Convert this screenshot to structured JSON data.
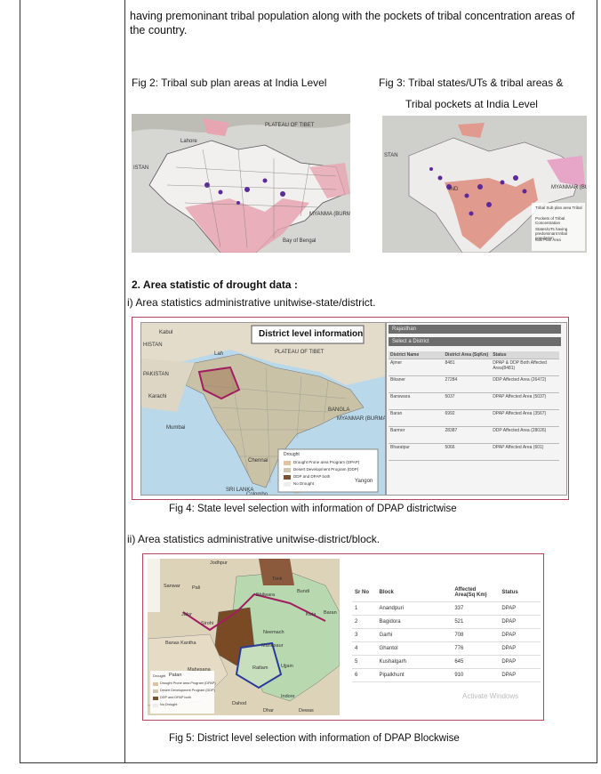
{
  "intro_text": "having premoninant tribal population along with the pockets of tribal concentration areas of the country.",
  "fig2": {
    "caption": "Fig 2:  Tribal sub plan areas at India Level",
    "map_labels": [
      "PLATEAU OF TIBET",
      "ISTAN",
      "Lahore",
      "MYANMA (BURMA)",
      "Bay of Bengal"
    ]
  },
  "fig3": {
    "caption_lines": [
      "Fig 3:  Tribal states/UTs & tribal areas &",
      "Tribal pockets at India Level"
    ],
    "map_labels": [
      "STAN",
      "IND",
      "MYANMAR (BURMA)"
    ],
    "legend": [
      "Tribal Sub plan area Tribal",
      "Pockets of Tribal Concentration",
      "States/UTs having predominant tribal population",
      "Sub Plan Area"
    ]
  },
  "section": {
    "heading": "2.   Area statistic of drought data :",
    "sub_i": "i) Area statistics administrative unitwise-state/district.",
    "sub_ii": "ii) Area statistics administrative unitwise-district/block."
  },
  "fig4": {
    "panel_title": "District level information",
    "state_select": "Rajasthan",
    "district_select": "Select a District",
    "map_labels": [
      "Kabul",
      "HISTAN",
      "Lah",
      "PAKISTAN",
      "Karachi",
      "PLATEAU OF TIBET",
      "Mumbai",
      "BANGLA",
      "MYANMAR (BURMA)",
      "Yangon",
      "Chennai",
      "SRI LANKA",
      "Colombo"
    ],
    "legend": {
      "title": "Drought",
      "items": [
        "Drought Prone area Program (DPAP)",
        "Desert Development Program (DDP)",
        "DDP and DPAP both",
        "No Drought"
      ]
    },
    "table": {
      "headers": [
        "District Name",
        "District Area (SqKm)",
        "Status"
      ],
      "rows": [
        [
          "Ajmer",
          "8481",
          "DPAP & DDP Both Affected Area(8481)"
        ],
        [
          "Bikaner",
          "27284",
          "DDP Affected Area (26472)"
        ],
        [
          "Banswara",
          "5037",
          "DPAP Affected Area (5037)"
        ],
        [
          "Baran",
          "6992",
          "DPAP Affected Area (3567)"
        ],
        [
          "Barmer",
          "28387",
          "DDP Affected Area (28026)"
        ],
        [
          "Bharatpur",
          "5066",
          "DPAP Affected Area (601)"
        ]
      ]
    },
    "caption": "Fig 4: State level selection with information of DPAP districtwise"
  },
  "fig5": {
    "map_labels": [
      "Jodhpur",
      "Tonk",
      "Sanwar",
      "Pali",
      "Bhilwara",
      "Bundi",
      "Kota",
      "Baran",
      "Jalor",
      "Sirohi",
      "Banas Kantha",
      "Neemach",
      "Mandsaur",
      "Patan",
      "Mahesana",
      "Ratlam",
      "Ujjain",
      "Dahod",
      "Indore",
      "Dhar",
      "Dewas"
    ],
    "legend": {
      "title": "Drought",
      "items": [
        "Drought Prone area Program (DPAP)",
        "Desert Development Program (DDP)",
        "DDP and DPAP both",
        "No Drought"
      ]
    },
    "table": {
      "headers": [
        "Sr No",
        "Block",
        "Affected Area(Sq Km)",
        "Status"
      ],
      "rows": [
        [
          "1",
          "Anandpuri",
          "337",
          "DPAP"
        ],
        [
          "2",
          "Bagidora",
          "521",
          "DPAP"
        ],
        [
          "3",
          "Garhi",
          "708",
          "DPAP"
        ],
        [
          "4",
          "Ghantol",
          "776",
          "DPAP"
        ],
        [
          "5",
          "Kushalgarh",
          "645",
          "DPAP"
        ],
        [
          "6",
          "Pipalkhunt",
          "910",
          "DPAP"
        ]
      ]
    },
    "watermark": "Activate Windows",
    "caption": "Fig 5: District level selection with information of DPAP Blockwise"
  }
}
